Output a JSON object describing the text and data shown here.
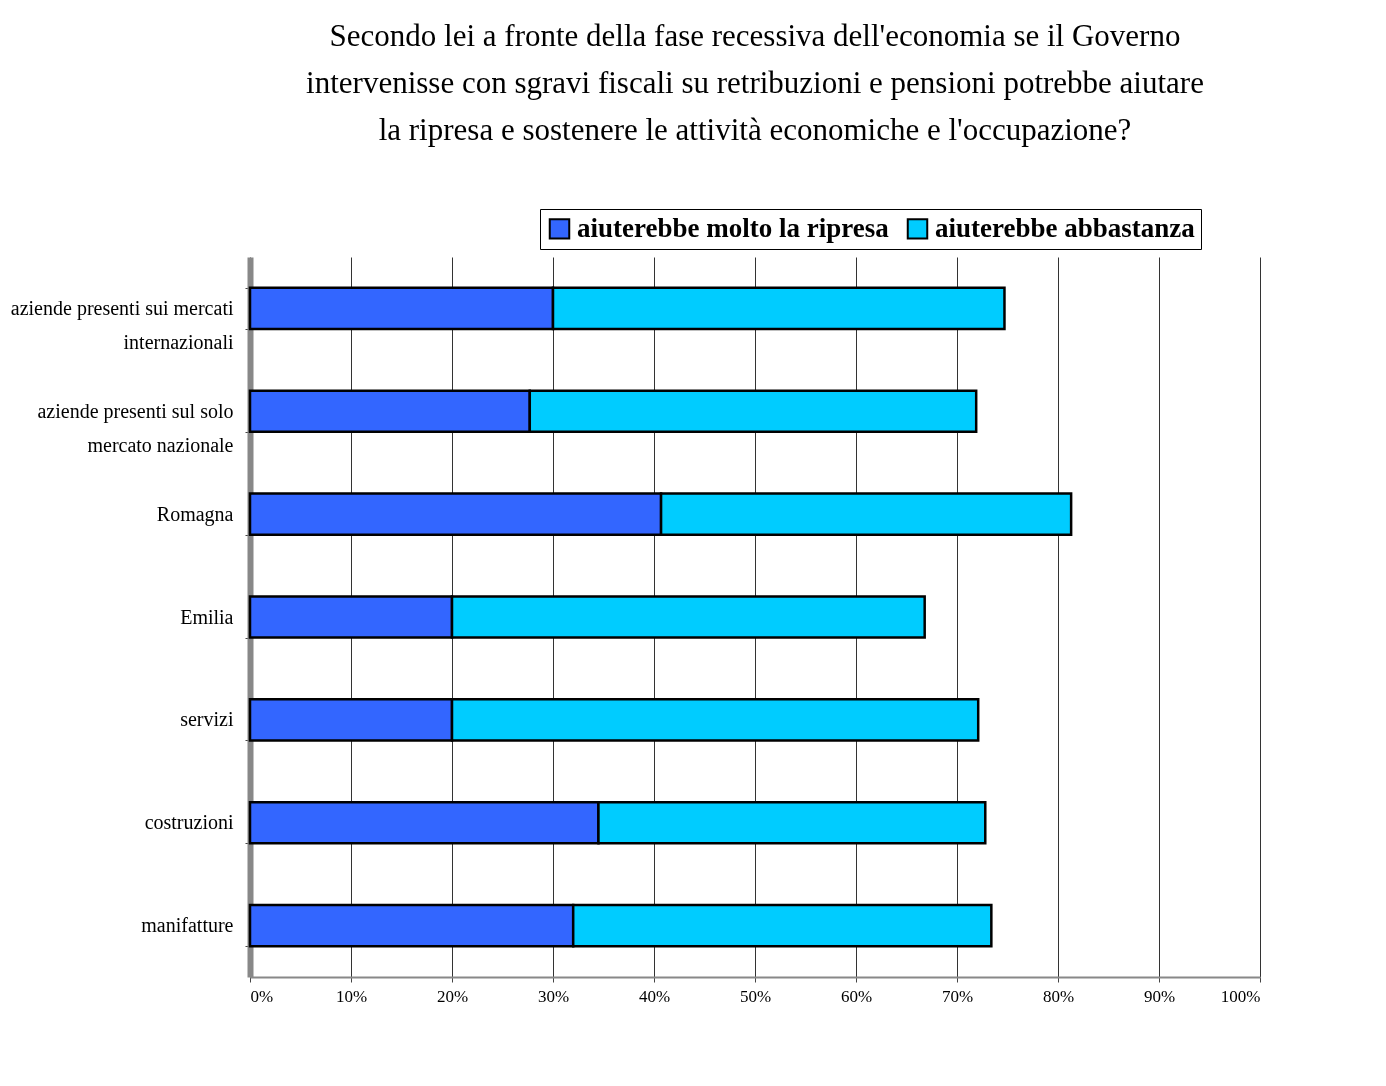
{
  "chart_data": {
    "type": "bar",
    "orientation": "horizontal",
    "stacked": true,
    "title": "Secondo lei a fronte della fase recessiva dell'economia se il Governo intervenisse con sgravi fiscali su retribuzioni e pensioni potrebbe aiutare la ripresa e sostenere le attività economiche e l'occupazione?",
    "categories": [
      "aziende presenti sui mercati internazionali",
      "aziende presenti sul solo mercato nazionale",
      "Romagna",
      "Emilia",
      "servizi",
      "costruzioni",
      "manifatture"
    ],
    "series": [
      {
        "name": "aiuterebbe molto la ripresa",
        "color": "#3366ff",
        "values": [
          30,
          27.7,
          40.7,
          20,
          20,
          34.5,
          32
        ]
      },
      {
        "name": "aiuterebbe abbastanza",
        "color": "#00ccff",
        "values": [
          44.7,
          44.2,
          40.6,
          46.8,
          52.1,
          38.3,
          41.4
        ]
      }
    ],
    "xlim": [
      0,
      100
    ],
    "xticks": [
      {
        "value": 0,
        "label": "0%"
      },
      {
        "value": 10,
        "label": "10%"
      },
      {
        "value": 20,
        "label": "20%"
      },
      {
        "value": 30,
        "label": "30%"
      },
      {
        "value": 40,
        "label": "40%"
      },
      {
        "value": 50,
        "label": "50%"
      },
      {
        "value": 60,
        "label": "60%"
      },
      {
        "value": 70,
        "label": "70%"
      },
      {
        "value": 80,
        "label": "80%"
      },
      {
        "value": 90,
        "label": "90%"
      },
      {
        "value": 100,
        "label": "100%"
      }
    ],
    "grid": "x",
    "legend": "top right"
  }
}
